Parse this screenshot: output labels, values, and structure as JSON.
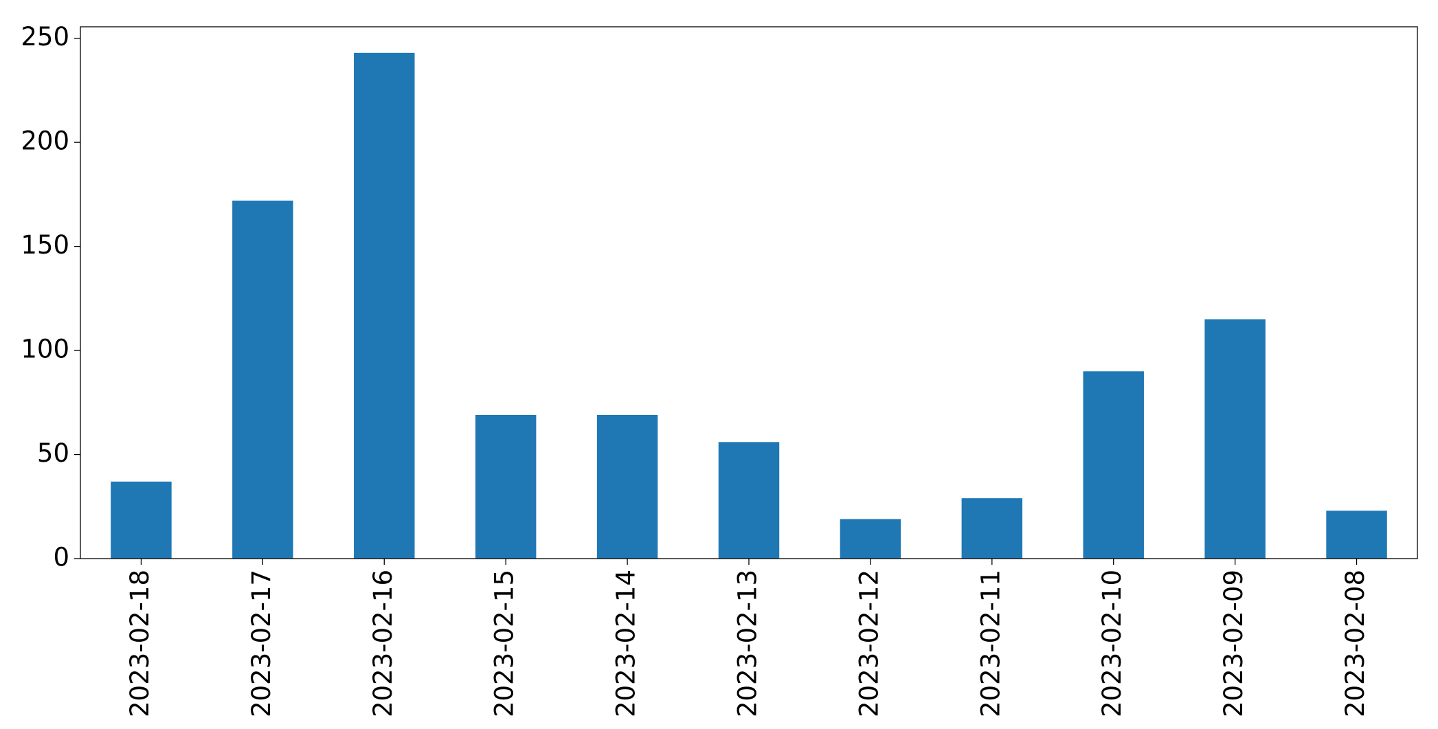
{
  "chart_data": {
    "type": "bar",
    "categories": [
      "2023-02-18",
      "2023-02-17",
      "2023-02-16",
      "2023-02-15",
      "2023-02-14",
      "2023-02-13",
      "2023-02-12",
      "2023-02-11",
      "2023-02-10",
      "2023-02-09",
      "2023-02-08"
    ],
    "values": [
      37,
      172,
      243,
      69,
      69,
      56,
      19,
      29,
      90,
      115,
      23
    ],
    "color": "#1f77b4",
    "ylim": [
      0,
      255.5
    ],
    "yticks": [
      0,
      50,
      100,
      150,
      200,
      250
    ],
    "grid": false
  }
}
